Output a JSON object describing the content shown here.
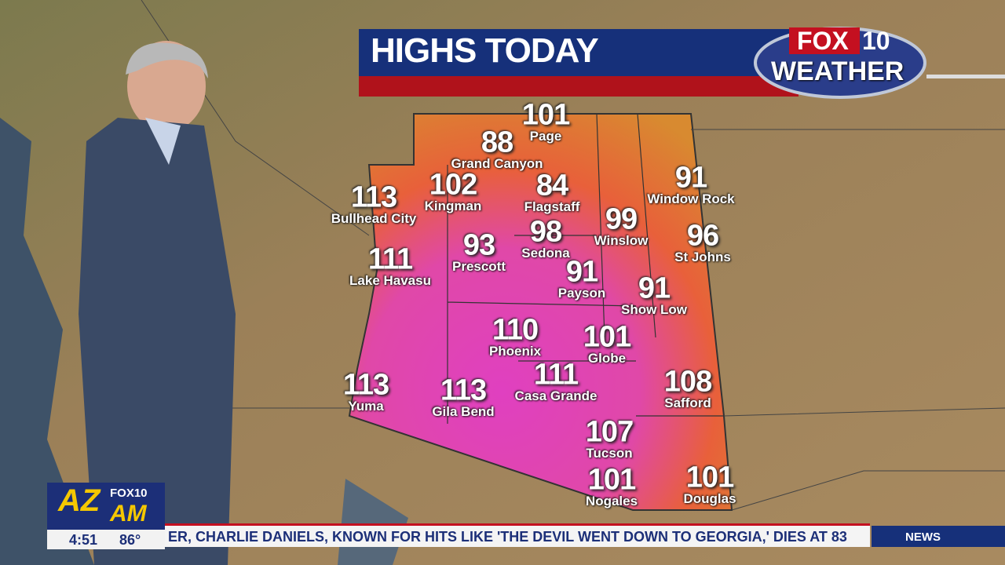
{
  "header": {
    "title": "HIGHS TODAY"
  },
  "logo": {
    "brand": "FOX",
    "channel": "10",
    "label": "WEATHER"
  },
  "cities": [
    {
      "temp": 101,
      "name": "Page"
    },
    {
      "temp": 88,
      "name": "Grand Canyon"
    },
    {
      "temp": 102,
      "name": "Kingman"
    },
    {
      "temp": 84,
      "name": "Flagstaff"
    },
    {
      "temp": 113,
      "name": "Bullhead City"
    },
    {
      "temp": 91,
      "name": "Window Rock"
    },
    {
      "temp": 99,
      "name": "Winslow"
    },
    {
      "temp": 98,
      "name": "Sedona"
    },
    {
      "temp": 93,
      "name": "Prescott"
    },
    {
      "temp": 96,
      "name": "St Johns"
    },
    {
      "temp": 111,
      "name": "Lake Havasu"
    },
    {
      "temp": 91,
      "name": "Payson"
    },
    {
      "temp": 91,
      "name": "Show Low"
    },
    {
      "temp": 110,
      "name": "Phoenix"
    },
    {
      "temp": 101,
      "name": "Globe"
    },
    {
      "temp": 111,
      "name": "Casa Grande"
    },
    {
      "temp": 108,
      "name": "Safford"
    },
    {
      "temp": 113,
      "name": "Yuma"
    },
    {
      "temp": 113,
      "name": "Gila Bend"
    },
    {
      "temp": 107,
      "name": "Tucson"
    },
    {
      "temp": 101,
      "name": "Nogales"
    },
    {
      "temp": 101,
      "name": "Douglas"
    }
  ],
  "show": {
    "name": "AZ",
    "suffix": "AM",
    "brand": "FOX10"
  },
  "status": {
    "time": "4:51",
    "temperature": "86°"
  },
  "ticker": {
    "text": "ER, CHARLIE DANIELS, KNOWN FOR HITS LIKE 'THE DEVIL WENT DOWN TO GEORGIA,' DIES AT 83",
    "section": "NEWS"
  }
}
